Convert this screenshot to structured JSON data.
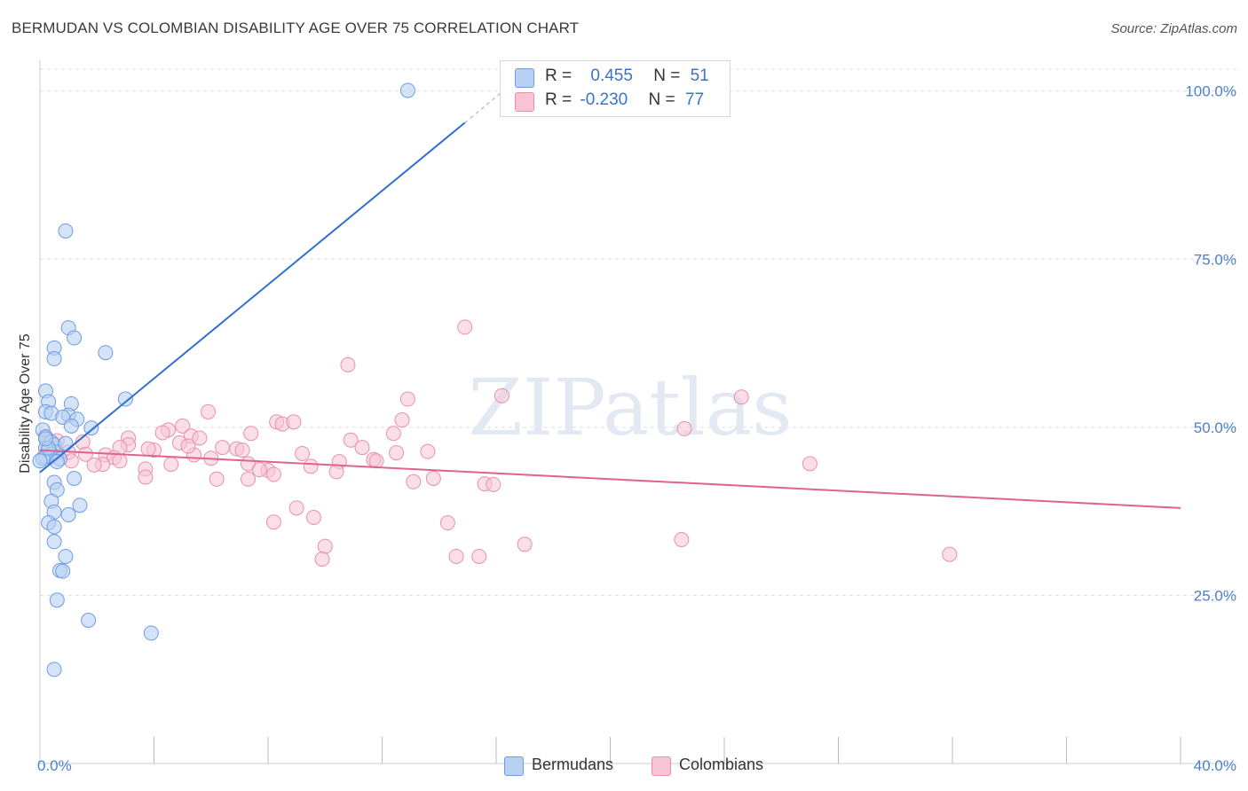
{
  "title": "BERMUDAN VS COLOMBIAN DISABILITY AGE OVER 75 CORRELATION CHART",
  "source": "Source: ZipAtlas.com",
  "watermark": "ZIPatlas",
  "colors": {
    "blue_fill": "#b8d0f4",
    "blue_stroke": "#6f9be0",
    "blue_line": "#2f6fd0",
    "pink_fill": "#f8c4d4",
    "pink_stroke": "#e98fae",
    "pink_line": "#e0628e",
    "grid": "#dddddd",
    "tick_text": "#4a7fd0"
  },
  "legend": {
    "rows": [
      {
        "r_label": "R = ",
        "r_value": "0.455",
        "n_label": "N = ",
        "n_value": "51",
        "series": "Bermudans"
      },
      {
        "r_label": "R = ",
        "r_value": "-0.230",
        "n_label": "N = ",
        "n_value": "77",
        "series": "Colombians"
      }
    ]
  },
  "bottom_legend": [
    "Bermudans",
    "Colombians"
  ],
  "chart_data": {
    "type": "scatter",
    "title": "BERMUDAN VS COLOMBIAN DISABILITY AGE OVER 75 CORRELATION CHART",
    "xlabel": "",
    "ylabel": "Disability Age Over 75",
    "xlim": [
      0,
      40
    ],
    "ylim": [
      0,
      103
    ],
    "x_tick_labels": [
      "0.0%",
      "40.0%"
    ],
    "y_ticks": [
      25,
      50,
      75,
      100
    ],
    "y_tick_labels": [
      "25.0%",
      "50.0%",
      "75.0%",
      "100.0%"
    ],
    "grid": true,
    "legend_position": "top-center",
    "series": [
      {
        "name": "Bermudans",
        "r": 0.455,
        "n": 51,
        "trend": {
          "x": [
            0.0,
            14.9
          ],
          "y": [
            43.3,
            95.3
          ],
          "dashed_ext_x": [
            14.9,
            16.5
          ],
          "dashed_ext_y": [
            95.3,
            100.9
          ]
        },
        "points": [
          [
            12.9,
            100.1
          ],
          [
            0.9,
            79.2
          ],
          [
            1.0,
            64.8
          ],
          [
            1.2,
            63.3
          ],
          [
            0.5,
            61.8
          ],
          [
            2.3,
            61.1
          ],
          [
            0.5,
            60.2
          ],
          [
            0.2,
            55.4
          ],
          [
            3.0,
            54.2
          ],
          [
            0.3,
            53.8
          ],
          [
            1.1,
            53.5
          ],
          [
            0.2,
            52.3
          ],
          [
            0.4,
            52.1
          ],
          [
            1.0,
            51.8
          ],
          [
            0.8,
            51.5
          ],
          [
            1.3,
            51.2
          ],
          [
            1.1,
            50.2
          ],
          [
            1.8,
            49.9
          ],
          [
            0.1,
            49.6
          ],
          [
            0.2,
            48.6
          ],
          [
            0.4,
            47.8
          ],
          [
            0.5,
            47.4
          ],
          [
            0.2,
            46.9
          ],
          [
            0.3,
            46.6
          ],
          [
            0.6,
            46.3
          ],
          [
            0.4,
            46.0
          ],
          [
            0.2,
            45.6
          ],
          [
            0.7,
            45.3
          ],
          [
            0.1,
            45.4
          ],
          [
            0.0,
            45.0
          ],
          [
            0.6,
            44.9
          ],
          [
            1.2,
            42.4
          ],
          [
            0.5,
            41.8
          ],
          [
            0.6,
            40.7
          ],
          [
            0.4,
            39.0
          ],
          [
            1.4,
            38.4
          ],
          [
            0.5,
            37.4
          ],
          [
            1.0,
            37.0
          ],
          [
            0.3,
            35.8
          ],
          [
            0.5,
            35.2
          ],
          [
            0.5,
            33.0
          ],
          [
            0.9,
            30.8
          ],
          [
            0.7,
            28.7
          ],
          [
            0.8,
            28.6
          ],
          [
            0.6,
            24.3
          ],
          [
            1.7,
            21.3
          ],
          [
            3.9,
            19.4
          ],
          [
            0.5,
            14.0
          ],
          [
            0.3,
            46.9
          ],
          [
            0.9,
            47.6
          ],
          [
            0.2,
            48.3
          ]
        ]
      },
      {
        "name": "Colombians",
        "r": -0.23,
        "n": 77,
        "trend": {
          "x": [
            0.0,
            40.0
          ],
          "y": [
            46.6,
            38.0
          ]
        },
        "points": [
          [
            14.9,
            64.9
          ],
          [
            10.8,
            59.3
          ],
          [
            12.9,
            54.2
          ],
          [
            16.2,
            54.7
          ],
          [
            24.6,
            54.5
          ],
          [
            5.9,
            52.3
          ],
          [
            12.7,
            51.1
          ],
          [
            8.3,
            50.8
          ],
          [
            8.5,
            50.5
          ],
          [
            5.0,
            50.2
          ],
          [
            4.5,
            49.6
          ],
          [
            22.6,
            49.8
          ],
          [
            12.4,
            49.1
          ],
          [
            7.4,
            49.1
          ],
          [
            4.3,
            49.2
          ],
          [
            3.1,
            48.4
          ],
          [
            5.3,
            48.7
          ],
          [
            5.6,
            48.4
          ],
          [
            0.2,
            48.5
          ],
          [
            0.6,
            48.0
          ],
          [
            10.9,
            48.1
          ],
          [
            1.5,
            47.8
          ],
          [
            3.1,
            47.4
          ],
          [
            2.8,
            47.0
          ],
          [
            6.4,
            47.0
          ],
          [
            6.9,
            46.8
          ],
          [
            11.3,
            47.0
          ],
          [
            7.1,
            46.6
          ],
          [
            4.0,
            46.6
          ],
          [
            1.0,
            46.3
          ],
          [
            2.3,
            45.9
          ],
          [
            5.4,
            45.9
          ],
          [
            9.2,
            46.1
          ],
          [
            2.6,
            45.5
          ],
          [
            6.0,
            45.4
          ],
          [
            1.1,
            45.0
          ],
          [
            10.5,
            44.9
          ],
          [
            12.5,
            46.2
          ],
          [
            11.7,
            45.2
          ],
          [
            11.8,
            45.0
          ],
          [
            2.2,
            44.5
          ],
          [
            1.9,
            44.4
          ],
          [
            4.6,
            44.5
          ],
          [
            7.3,
            44.6
          ],
          [
            3.7,
            43.8
          ],
          [
            9.5,
            44.2
          ],
          [
            8.0,
            43.6
          ],
          [
            7.7,
            43.7
          ],
          [
            10.4,
            43.4
          ],
          [
            8.2,
            43.0
          ],
          [
            3.7,
            42.6
          ],
          [
            6.2,
            42.3
          ],
          [
            7.3,
            42.3
          ],
          [
            13.8,
            42.4
          ],
          [
            13.1,
            41.9
          ],
          [
            15.6,
            41.6
          ],
          [
            15.9,
            41.5
          ],
          [
            27.0,
            44.6
          ],
          [
            9.0,
            38.0
          ],
          [
            9.6,
            36.6
          ],
          [
            8.2,
            35.9
          ],
          [
            14.3,
            35.8
          ],
          [
            22.5,
            33.3
          ],
          [
            17.0,
            32.6
          ],
          [
            10.0,
            32.3
          ],
          [
            9.9,
            30.4
          ],
          [
            14.6,
            30.8
          ],
          [
            15.4,
            30.8
          ],
          [
            31.9,
            31.1
          ],
          [
            2.8,
            45.0
          ],
          [
            1.6,
            46.0
          ],
          [
            0.5,
            46.9
          ],
          [
            4.9,
            47.7
          ],
          [
            8.9,
            50.8
          ],
          [
            13.6,
            46.4
          ],
          [
            3.8,
            46.8
          ],
          [
            5.2,
            47.2
          ]
        ]
      }
    ]
  }
}
